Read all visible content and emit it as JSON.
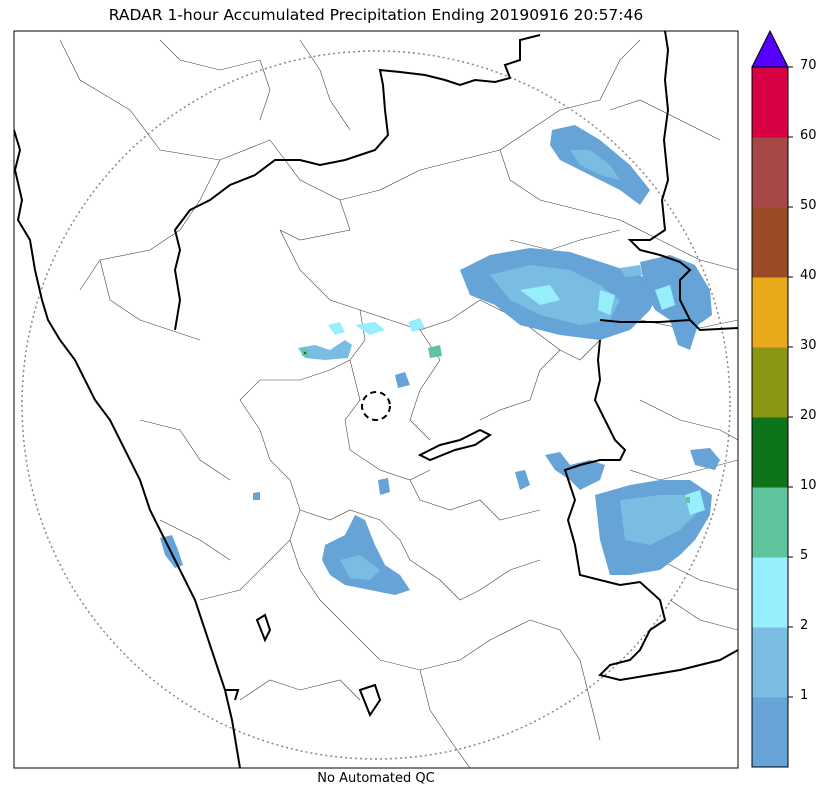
{
  "title": "RADAR 1-hour Accumulated Precipitation Ending 20190916 20:57:46",
  "footer": "No Automated QC",
  "colorbar": {
    "bins": [
      {
        "min": 0,
        "max": 1,
        "color": "#66a3d6"
      },
      {
        "min": 1,
        "max": 2,
        "color": "#79bde3"
      },
      {
        "min": 2,
        "max": 5,
        "color": "#97eefc"
      },
      {
        "min": 5,
        "max": 10,
        "color": "#5fc49b"
      },
      {
        "min": 10,
        "max": 20,
        "color": "#0d7419"
      },
      {
        "min": 20,
        "max": 30,
        "color": "#8a9614"
      },
      {
        "min": 30,
        "max": 40,
        "color": "#e8a91b"
      },
      {
        "min": 40,
        "max": 50,
        "color": "#9a4c27"
      },
      {
        "min": 50,
        "max": 60,
        "color": "#a64946"
      },
      {
        "min": 60,
        "max": 70,
        "color": "#d60043"
      }
    ],
    "tick_labels": [
      "1",
      "2",
      "5",
      "10",
      "20",
      "30",
      "40",
      "50",
      "60",
      "70"
    ],
    "extend_color": "#5500ff"
  }
}
